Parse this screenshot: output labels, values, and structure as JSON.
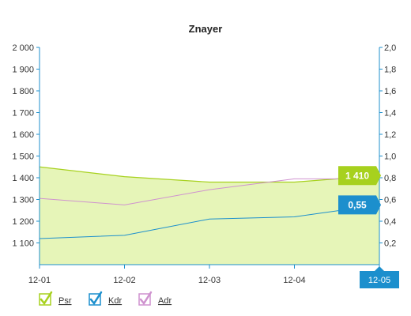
{
  "colors": {
    "psr": "#a7d11e",
    "psr_fill": "#e6f5b8",
    "kdr": "#1c8fcd",
    "adr": "#cf92cf",
    "axis": "#1c8fcd"
  },
  "legend": [
    {
      "series": "Psr",
      "label": "Psr",
      "color": "#a7d11e"
    },
    {
      "series": "Kdr",
      "label": "Kdr",
      "color": "#1c8fcd"
    },
    {
      "series": "Adr",
      "label": "Adr",
      "color": "#cf92cf"
    }
  ],
  "callouts": {
    "psr": {
      "text": "1 410",
      "color": "#a7d11e"
    },
    "kdr": {
      "text": "0,55",
      "color": "#1c8fcd"
    },
    "x": {
      "text": "12-05",
      "color": "#1c8fcd"
    }
  },
  "chart_data": {
    "type": "area",
    "title": "Znayer",
    "categories": [
      "12-01",
      "12-02",
      "12-03",
      "12-04",
      "12-05"
    ],
    "x_tick_labels": [
      "12-01",
      "12-02",
      "12-03",
      "12-04",
      "12-05"
    ],
    "series": [
      {
        "name": "Psr",
        "axis": "left",
        "type": "area",
        "values": [
          1450,
          1405,
          1380,
          1380,
          1410
        ]
      },
      {
        "name": "Kdr",
        "axis": "right",
        "type": "line",
        "values": [
          0.24,
          0.27,
          0.42,
          0.44,
          0.55
        ]
      },
      {
        "name": "Adr",
        "axis": "right",
        "type": "line",
        "values": [
          0.61,
          0.55,
          0.69,
          0.79,
          0.79
        ]
      }
    ],
    "y_left": {
      "min": 1000,
      "max": 2000,
      "ticks": [
        1100,
        1200,
        1300,
        1400,
        1500,
        1600,
        1700,
        1800,
        1900,
        2000
      ],
      "tick_labels": [
        "1 100",
        "1 200",
        "1 300",
        "1 400",
        "1 500",
        "1 600",
        "1 700",
        "1 800",
        "1 900",
        "2 000"
      ]
    },
    "y_right": {
      "min": 0,
      "max": 2.0,
      "ticks": [
        0.2,
        0.4,
        0.6,
        0.8,
        1.0,
        1.2,
        1.4,
        1.6,
        1.8,
        2.0
      ],
      "tick_labels": [
        "0,2",
        "0,4",
        "0,6",
        "0,8",
        "1,0",
        "1,2",
        "1,4",
        "1,6",
        "1,8",
        "2,0"
      ]
    },
    "grid": false,
    "legend_position": "bottom-left"
  }
}
